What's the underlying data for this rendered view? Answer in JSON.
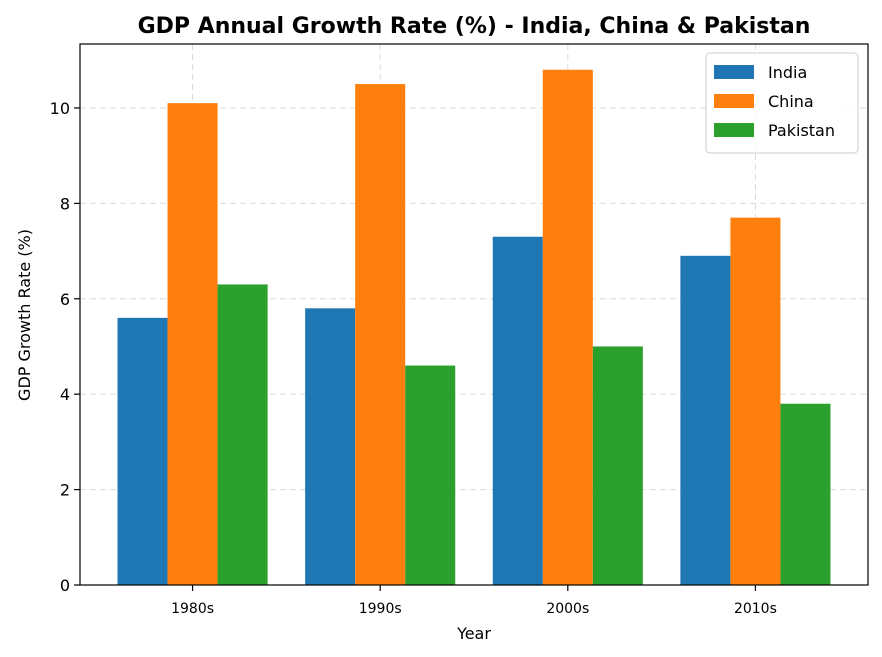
{
  "chart_data": {
    "type": "bar",
    "title": "GDP Annual Growth Rate (%) - India, China & Pakistan",
    "xlabel": "Year",
    "ylabel": "GDP Growth Rate (%)",
    "categories": [
      "1980s",
      "1990s",
      "2000s",
      "2010s"
    ],
    "series": [
      {
        "name": "India",
        "color": "#1f77b4",
        "values": [
          5.6,
          5.8,
          7.3,
          6.9
        ]
      },
      {
        "name": "China",
        "color": "#ff7f0e",
        "values": [
          10.1,
          10.5,
          10.8,
          7.7
        ]
      },
      {
        "name": "Pakistan",
        "color": "#2ca02c",
        "values": [
          6.3,
          4.6,
          5.0,
          3.8
        ]
      }
    ],
    "ylim": [
      0,
      11.34
    ],
    "yticks": [
      0,
      2,
      4,
      6,
      8,
      10
    ],
    "grid": true,
    "legend_position": "top-right"
  }
}
